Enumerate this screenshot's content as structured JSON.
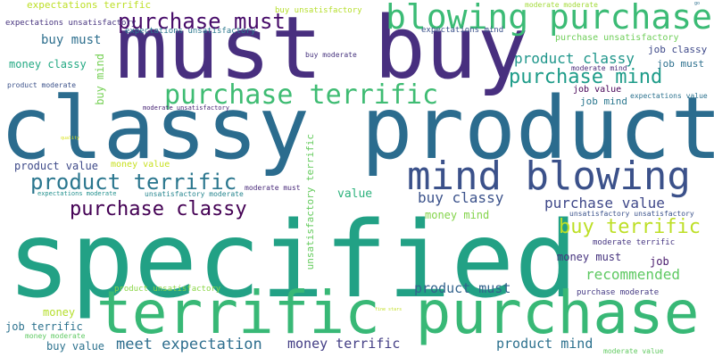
{
  "cloud": {
    "words": [
      {
        "text": "specified",
        "color": "#22a185"
      },
      {
        "text": "classy product",
        "color": "#2b6c8e"
      },
      {
        "text": "must buy",
        "color": "#482f7f"
      },
      {
        "text": "terrific purchase",
        "color": "#38b876"
      },
      {
        "text": "blowing purchase",
        "color": "#3bbb75"
      },
      {
        "text": "mind blowing",
        "color": "#3b518a"
      },
      {
        "text": "purchase terrific",
        "color": "#3fbc73"
      },
      {
        "text": "purchase must",
        "color": "#470b69"
      },
      {
        "text": "product terrific",
        "color": "#2a768e"
      },
      {
        "text": "purchase classy",
        "color": "#440154"
      },
      {
        "text": "purchase mind",
        "color": "#1e9c89"
      },
      {
        "text": "buy terrific",
        "color": "#bddf26"
      },
      {
        "text": "meet expectation",
        "color": "#2e6e8e"
      },
      {
        "text": "product classy",
        "color": "#1f968b"
      },
      {
        "text": "purchase value",
        "color": "#3f4889"
      },
      {
        "text": "buy classy",
        "color": "#3b528b"
      },
      {
        "text": "recommended",
        "color": "#5ec962"
      },
      {
        "text": "product must",
        "color": "#33638d"
      },
      {
        "text": "money terrific",
        "color": "#433e85"
      },
      {
        "text": "product mind",
        "color": "#2d718e"
      },
      {
        "text": "buy must",
        "color": "#2e6f8e"
      },
      {
        "text": "money mind",
        "color": "#84d44b"
      },
      {
        "text": "money must",
        "color": "#46337e"
      },
      {
        "text": "job terrific",
        "color": "#2c728e"
      },
      {
        "text": "product value",
        "color": "#3e4a89"
      },
      {
        "text": "money classy",
        "color": "#23a983"
      },
      {
        "text": "buy value",
        "color": "#2c728e"
      },
      {
        "text": "value",
        "color": "#2db27d"
      },
      {
        "text": "money",
        "color": "#b5de2b"
      },
      {
        "text": "buy mind",
        "color": "#75d054"
      },
      {
        "text": "job",
        "color": "#481a6c"
      },
      {
        "text": "job classy",
        "color": "#3e4989"
      },
      {
        "text": "job must",
        "color": "#2d708e"
      },
      {
        "text": "job mind",
        "color": "#2a778e"
      },
      {
        "text": "job value",
        "color": "#440154"
      },
      {
        "text": "unsatisfactory terrific",
        "color": "#65cb5e"
      },
      {
        "text": "expectations terrific",
        "color": "#bddf26"
      },
      {
        "text": "expectations unsatisfactory",
        "color": "#46337e"
      },
      {
        "text": "expectations unsatisfactory",
        "color": "#2a778e"
      },
      {
        "text": "buy unsatisfactory",
        "color": "#b5de2b"
      },
      {
        "text": "moderate moderate",
        "color": "#a2da37"
      },
      {
        "text": "expectations mind",
        "color": "#3b528b"
      },
      {
        "text": "purchase unsatisfactory",
        "color": "#6ece58"
      },
      {
        "text": "buy moderate",
        "color": "#46337e"
      },
      {
        "text": "moderate mind",
        "color": "#482878"
      },
      {
        "text": "expectations value",
        "color": "#2c728e"
      },
      {
        "text": "product moderate",
        "color": "#3b518a"
      },
      {
        "text": "moderate unsatisfactory",
        "color": "#482475"
      },
      {
        "text": "money value",
        "color": "#c8e020"
      },
      {
        "text": "moderate must",
        "color": "#482979"
      },
      {
        "text": "expectations moderate",
        "color": "#21908d"
      },
      {
        "text": "unsatisfactory moderate",
        "color": "#25858e"
      },
      {
        "text": "unsatisfactory unsatisfactory",
        "color": "#3b528b"
      },
      {
        "text": "moderate terrific",
        "color": "#453581"
      },
      {
        "text": "product unsatisfactory",
        "color": "#8bd646"
      },
      {
        "text": "purchase moderate",
        "color": "#443983"
      },
      {
        "text": "money moderate",
        "color": "#5ec962"
      },
      {
        "text": "moderate value",
        "color": "#60ca60"
      },
      {
        "text": "quality",
        "color": "#d8e219"
      },
      {
        "text": "fine stars",
        "color": "#c2df23"
      },
      {
        "text": "go",
        "color": "#2d708e"
      }
    ]
  }
}
